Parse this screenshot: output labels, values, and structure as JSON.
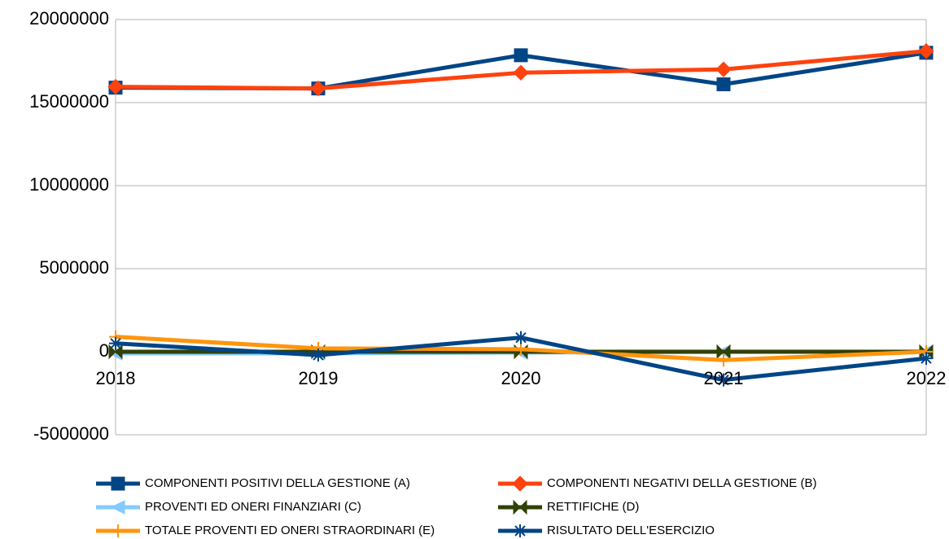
{
  "chart_data": {
    "type": "line",
    "categories": [
      "2018",
      "2019",
      "2020",
      "2021",
      "2022"
    ],
    "series": [
      {
        "name": "COMPONENTI POSITIVI DELLA GESTIONE (A)",
        "color": "#004586",
        "marker": "square",
        "values": [
          15900000,
          15850000,
          17850000,
          16100000,
          18000000
        ]
      },
      {
        "name": "COMPONENTI NEGATIVI DELLA GESTIONE (B)",
        "color": "#ff420e",
        "marker": "diamond",
        "values": [
          15950000,
          15850000,
          16800000,
          17000000,
          18100000
        ]
      },
      {
        "name": " PROVENTI ED ONERI FINANZIARI (C)",
        "color": "#83caff",
        "marker": "triangle-left",
        "values": [
          -100000,
          -100000,
          -50000,
          0,
          0
        ]
      },
      {
        "name": "RETTIFICHE (D)",
        "color": "#314004",
        "marker": "bowtie",
        "values": [
          0,
          0,
          0,
          0,
          0
        ]
      },
      {
        "name": "TOTALE PROVENTI ED ONERI STRAORDINARI (E)",
        "color": "#ff950e",
        "marker": "plus",
        "values": [
          900000,
          200000,
          150000,
          -500000,
          0
        ]
      },
      {
        "name": "RISULTATO DELL'ESERCIZIO",
        "color": "#004586",
        "marker": "star",
        "values": [
          500000,
          -200000,
          850000,
          -1700000,
          -400000
        ]
      }
    ],
    "ylim": [
      -5000000,
      20000000
    ],
    "yticks": [
      -5000000,
      0,
      5000000,
      10000000,
      15000000,
      20000000
    ],
    "grid": true
  }
}
